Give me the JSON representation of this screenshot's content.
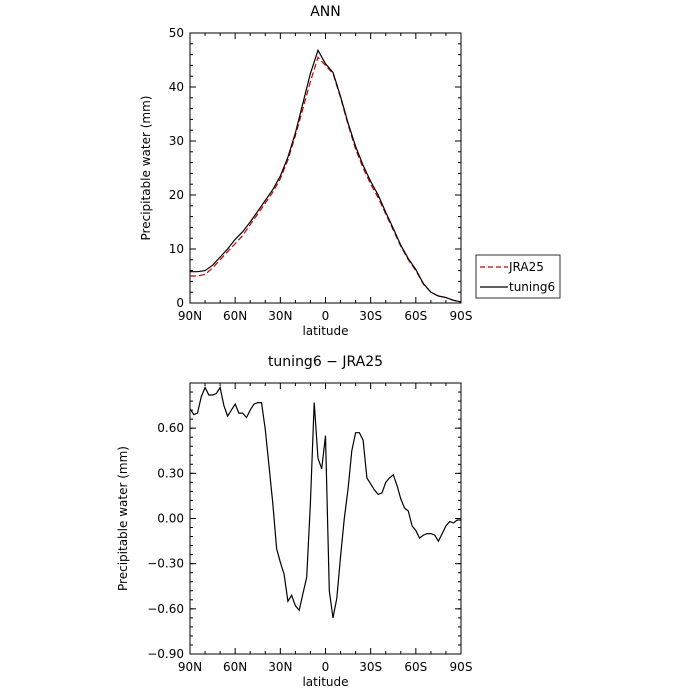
{
  "chart_data": [
    {
      "type": "line",
      "title": "ANN",
      "xlabel": "latitude",
      "ylabel": "Precipitable water (mm)",
      "xlim": [
        90,
        -90
      ],
      "ylim": [
        0,
        50
      ],
      "xticks": [
        90,
        60,
        30,
        0,
        -30,
        -60,
        -90
      ],
      "xtick_labels": [
        "90N",
        "60N",
        "30N",
        "0",
        "30S",
        "60S",
        "90S"
      ],
      "yticks": [
        0,
        10,
        20,
        30,
        40,
        50
      ],
      "ytick_labels": [
        "0",
        "10",
        "20",
        "30",
        "40",
        "50"
      ],
      "legend_position": "right, outside plot",
      "series": [
        {
          "name": "JRA25",
          "color": "#cc0000",
          "style": "dashed",
          "x": [
            90,
            85,
            80,
            75,
            70,
            65,
            60,
            55,
            50,
            45,
            40,
            35,
            30,
            25,
            20,
            15,
            10,
            5,
            0,
            -5,
            -10,
            -15,
            -20,
            -25,
            -30,
            -35,
            -40,
            -45,
            -50,
            -55,
            -60,
            -65,
            -70,
            -75,
            -80,
            -85,
            -90
          ],
          "y": [
            5.0,
            5.0,
            5.3,
            6.5,
            8.0,
            9.5,
            11.0,
            12.5,
            14.5,
            16.5,
            18.5,
            20.5,
            23.0,
            26.5,
            31.0,
            36.0,
            41.0,
            45.5,
            44.0,
            42.5,
            38.0,
            33.0,
            28.5,
            25.0,
            22.0,
            19.5,
            16.5,
            13.5,
            10.5,
            8.0,
            6.0,
            3.5,
            2.0,
            1.3,
            1.0,
            0.5,
            0.2
          ]
        },
        {
          "name": "tuning6",
          "color": "#000000",
          "style": "solid",
          "x": [
            90,
            85,
            80,
            75,
            70,
            65,
            60,
            55,
            50,
            45,
            40,
            35,
            30,
            25,
            20,
            15,
            10,
            5,
            0,
            -5,
            -10,
            -15,
            -20,
            -25,
            -30,
            -35,
            -40,
            -45,
            -50,
            -55,
            -60,
            -65,
            -70,
            -75,
            -80,
            -85,
            -90
          ],
          "y": [
            5.8,
            5.8,
            6.0,
            7.0,
            8.5,
            10.0,
            11.8,
            13.2,
            15.0,
            17.0,
            19.0,
            21.0,
            23.5,
            27.0,
            31.5,
            37.0,
            42.5,
            46.8,
            44.3,
            42.7,
            38.2,
            33.3,
            29.0,
            25.5,
            22.5,
            20.0,
            16.8,
            13.8,
            10.7,
            8.2,
            6.2,
            3.6,
            2.0,
            1.3,
            1.0,
            0.5,
            0.2
          ]
        }
      ]
    },
    {
      "type": "line",
      "title": "tuning6 − JRA25",
      "xlabel": "latitude",
      "ylabel": "Precipitable water (mm)",
      "xlim": [
        90,
        -90
      ],
      "ylim": [
        -0.9,
        0.9
      ],
      "xticks": [
        90,
        60,
        30,
        0,
        -30,
        -60,
        -90
      ],
      "xtick_labels": [
        "90N",
        "60N",
        "30N",
        "0",
        "30S",
        "60S",
        "90S"
      ],
      "yticks": [
        -0.9,
        -0.6,
        -0.3,
        0.0,
        0.3,
        0.6
      ],
      "ytick_labels": [
        "−0.90",
        "−0.60",
        "−0.30",
        "0.00",
        "0.30",
        "0.60"
      ],
      "series": [
        {
          "color": "#000000",
          "style": "solid",
          "x": [
            90,
            87.5,
            85,
            82.5,
            80,
            77.5,
            75,
            72.5,
            70,
            67.5,
            65,
            62.5,
            60,
            57.5,
            55,
            52.5,
            50,
            47.5,
            45,
            42.5,
            40,
            37.5,
            35,
            32.5,
            30,
            27.5,
            25,
            22.5,
            20,
            17.5,
            15,
            12.5,
            10,
            7.5,
            5,
            2.5,
            0,
            -2.5,
            -5,
            -7.5,
            -10,
            -12.5,
            -15,
            -17.5,
            -20,
            -22.5,
            -25,
            -27.5,
            -30,
            -32.5,
            -35,
            -37.5,
            -40,
            -42.5,
            -45,
            -47.5,
            -50,
            -52.5,
            -55,
            -57.5,
            -60,
            -62.5,
            -65,
            -67.5,
            -70,
            -72.5,
            -75,
            -77.5,
            -80,
            -82.5,
            -85,
            -87.5,
            -90
          ],
          "y": [
            0.73,
            0.69,
            0.7,
            0.81,
            0.87,
            0.82,
            0.82,
            0.83,
            0.87,
            0.75,
            0.68,
            0.72,
            0.76,
            0.7,
            0.7,
            0.67,
            0.72,
            0.76,
            0.77,
            0.77,
            0.59,
            0.35,
            0.1,
            -0.2,
            -0.29,
            -0.37,
            -0.55,
            -0.51,
            -0.58,
            -0.61,
            -0.5,
            -0.39,
            0.1,
            0.77,
            0.4,
            0.33,
            0.55,
            -0.48,
            -0.66,
            -0.53,
            -0.25,
            0.0,
            0.2,
            0.45,
            0.57,
            0.57,
            0.52,
            0.27,
            0.23,
            0.19,
            0.16,
            0.17,
            0.24,
            0.27,
            0.29,
            0.22,
            0.13,
            0.07,
            0.05,
            -0.05,
            -0.08,
            -0.13,
            -0.11,
            -0.1,
            -0.1,
            -0.11,
            -0.15,
            -0.1,
            -0.05,
            -0.02,
            -0.03,
            -0.01,
            -0.01
          ]
        }
      ]
    }
  ]
}
